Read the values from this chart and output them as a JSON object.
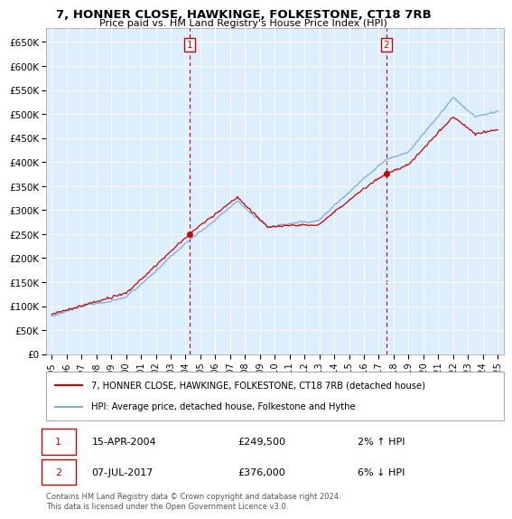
{
  "title": "7, HONNER CLOSE, HAWKINGE, FOLKESTONE, CT18 7RB",
  "subtitle": "Price paid vs. HM Land Registry's House Price Index (HPI)",
  "ylabel_ticks": [
    "£0",
    "£50K",
    "£100K",
    "£150K",
    "£200K",
    "£250K",
    "£300K",
    "£350K",
    "£400K",
    "£450K",
    "£500K",
    "£550K",
    "£600K",
    "£650K"
  ],
  "ytick_values": [
    0,
    50000,
    100000,
    150000,
    200000,
    250000,
    300000,
    350000,
    400000,
    450000,
    500000,
    550000,
    600000,
    650000
  ],
  "ylim": [
    0,
    680000
  ],
  "sale1_date": 2004.29,
  "sale1_price": 249500,
  "sale2_date": 2017.52,
  "sale2_price": 376000,
  "legend_line1": "7, HONNER CLOSE, HAWKINGE, FOLKESTONE, CT18 7RB (detached house)",
  "legend_line2": "HPI: Average price, detached house, Folkestone and Hythe",
  "annotation1_date": "15-APR-2004",
  "annotation1_price": "£249,500",
  "annotation1_hpi": "2% ↑ HPI",
  "annotation2_date": "07-JUL-2017",
  "annotation2_price": "£376,000",
  "annotation2_hpi": "6% ↓ HPI",
  "footer": "Contains HM Land Registry data © Crown copyright and database right 2024.\nThis data is licensed under the Open Government Licence v3.0.",
  "hpi_color": "#7aaadd",
  "sale_color": "#cc0000",
  "vline_color": "#cc0000",
  "plot_bg": "#ddeeff",
  "grid_color": "#bbccdd"
}
